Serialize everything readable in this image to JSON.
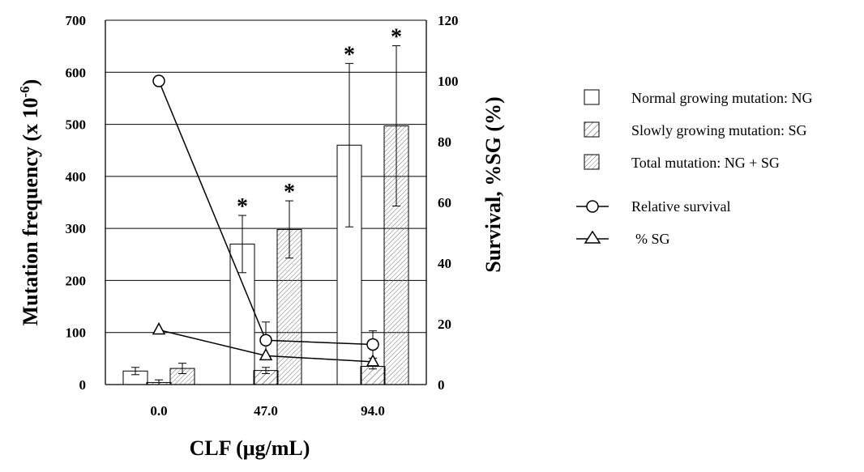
{
  "chart_data": {
    "type": "bar",
    "title": "",
    "xlabel": "CLF (μg/mL)",
    "ylabel": "Mutation frequency  (x 10-6)",
    "ylabel_main": "Mutation frequency  (x 10",
    "ylabel_sup": "-6",
    "ylabel_close": ")",
    "y2label": "Survival,  %SG   (%)",
    "ylim": [
      0,
      700
    ],
    "y2lim": [
      0,
      120
    ],
    "yticks": [
      "0",
      "100",
      "200",
      "300",
      "400",
      "500",
      "600",
      "700"
    ],
    "y2ticks": [
      "0",
      "20",
      "40",
      "60",
      "80",
      "100",
      "120"
    ],
    "categories": [
      "0.0",
      "47.0",
      "94.0"
    ],
    "grid": true,
    "legend_position": "right",
    "series": [
      {
        "name": "Normal growing mutation: NG",
        "kind": "bar",
        "pattern": "none",
        "values": [
          26,
          270,
          460
        ],
        "errors": [
          7,
          55,
          157
        ]
      },
      {
        "name": "Slowly growing mutation: SG",
        "kind": "bar",
        "pattern": "sparse-hatch",
        "values": [
          4,
          27,
          35
        ],
        "errors": [
          5,
          6,
          5
        ]
      },
      {
        "name": "Total mutation: NG + SG",
        "kind": "bar",
        "pattern": "dense-hatch",
        "values": [
          31,
          298,
          497
        ],
        "errors": [
          10,
          55,
          154
        ]
      },
      {
        "name": "Relative survival",
        "kind": "line",
        "axis": "y2",
        "marker": "circle",
        "values": [
          100,
          14.6,
          13.2
        ],
        "errors": [
          0,
          6,
          4.5
        ]
      },
      {
        "name": "% SG",
        "kind": "line",
        "axis": "y2",
        "marker": "triangle",
        "values": [
          18,
          9.5,
          7.5
        ]
      }
    ],
    "significance_marks": [
      {
        "category": "47.0",
        "series": "Normal growing mutation: NG",
        "label": "*"
      },
      {
        "category": "47.0",
        "series": "Total mutation: NG + SG",
        "label": "*"
      },
      {
        "category": "94.0",
        "series": "Normal growing mutation: NG",
        "label": "*"
      },
      {
        "category": "94.0",
        "series": "Total mutation: NG + SG",
        "label": "*"
      }
    ]
  }
}
